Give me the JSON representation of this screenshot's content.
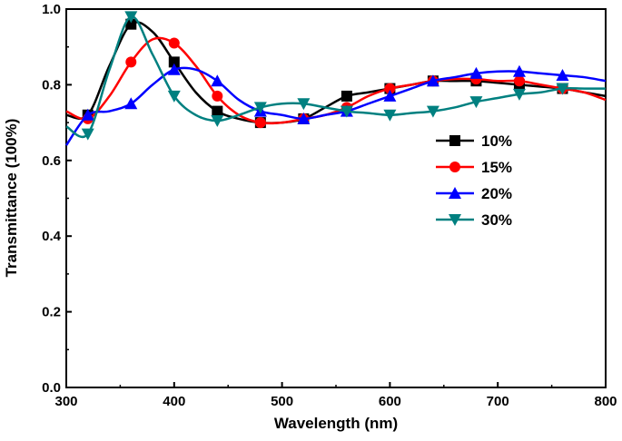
{
  "chart_data": {
    "type": "line",
    "title": "",
    "xlabel": "Wavelength (nm)",
    "ylabel": "Transmittance (100%)",
    "xlim": [
      300,
      800
    ],
    "ylim": [
      0.0,
      1.0
    ],
    "xticks": [
      "300",
      "400",
      "500",
      "600",
      "700",
      "800"
    ],
    "yticks": [
      "0.0",
      "0.2",
      "0.4",
      "0.6",
      "0.8",
      "1.0"
    ],
    "grid": false,
    "legend_position": "center-right",
    "x": [
      300,
      320,
      340,
      360,
      380,
      400,
      420,
      440,
      460,
      480,
      500,
      520,
      540,
      560,
      580,
      600,
      620,
      640,
      660,
      680,
      700,
      720,
      740,
      760,
      780,
      800
    ],
    "series": [
      {
        "name": "10%",
        "color": "#000000",
        "marker": "square",
        "values": [
          0.72,
          0.72,
          0.85,
          0.96,
          0.94,
          0.86,
          0.78,
          0.73,
          0.71,
          0.7,
          0.7,
          0.71,
          0.74,
          0.77,
          0.78,
          0.79,
          0.8,
          0.81,
          0.81,
          0.81,
          0.805,
          0.8,
          0.795,
          0.79,
          0.78,
          0.77
        ]
      },
      {
        "name": "15%",
        "color": "#ff0000",
        "marker": "circle",
        "values": [
          0.73,
          0.71,
          0.77,
          0.86,
          0.92,
          0.91,
          0.85,
          0.77,
          0.72,
          0.7,
          0.7,
          0.71,
          0.72,
          0.74,
          0.77,
          0.79,
          0.8,
          0.81,
          0.815,
          0.815,
          0.81,
          0.81,
          0.8,
          0.79,
          0.78,
          0.76
        ]
      },
      {
        "name": "20%",
        "color": "#0000ff",
        "marker": "triangle-up",
        "values": [
          0.64,
          0.72,
          0.73,
          0.75,
          0.8,
          0.84,
          0.84,
          0.81,
          0.76,
          0.73,
          0.72,
          0.71,
          0.72,
          0.73,
          0.75,
          0.77,
          0.79,
          0.81,
          0.82,
          0.83,
          0.835,
          0.835,
          0.83,
          0.825,
          0.82,
          0.81
        ]
      },
      {
        "name": "30%",
        "color": "#008080",
        "marker": "triangle-down",
        "values": [
          0.69,
          0.67,
          0.84,
          0.98,
          0.88,
          0.77,
          0.72,
          0.705,
          0.72,
          0.74,
          0.75,
          0.75,
          0.74,
          0.73,
          0.725,
          0.72,
          0.725,
          0.73,
          0.74,
          0.755,
          0.765,
          0.775,
          0.78,
          0.79,
          0.79,
          0.79
        ]
      }
    ]
  }
}
